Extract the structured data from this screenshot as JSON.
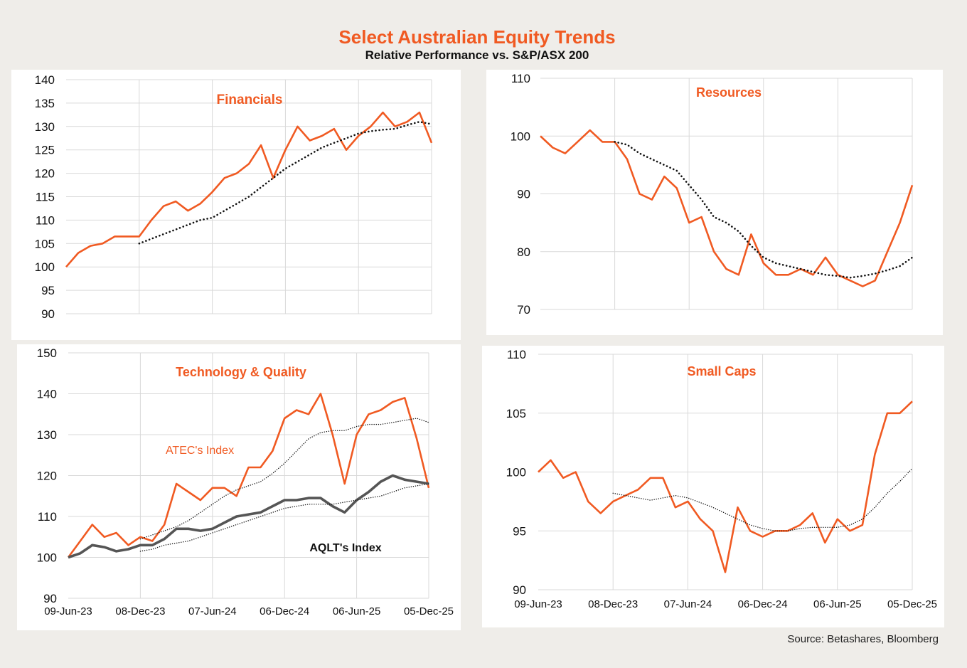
{
  "header": {
    "title": "Select Australian Equity Trends",
    "subtitle": "Relative Performance vs. S&P/ASX 200"
  },
  "source": "Source:  Betashares, Bloomberg",
  "colors": {
    "accent": "#f05a22",
    "aqlt": "#555555",
    "moving_average": "#111111",
    "grid": "#d9d9d9"
  },
  "chart_data": [
    {
      "id": "financials",
      "type": "line",
      "title": "Financials",
      "ylim": [
        90,
        140
      ],
      "yticks": [
        90,
        95,
        100,
        105,
        110,
        115,
        120,
        125,
        130,
        135,
        140
      ],
      "x_tick_labels": [],
      "grid": true,
      "x": [
        "2023-06",
        "2023-07",
        "2023-08",
        "2023-09",
        "2023-10",
        "2023-11",
        "2023-12",
        "2024-01",
        "2024-02",
        "2024-03",
        "2024-04",
        "2024-05",
        "2024-06",
        "2024-07",
        "2024-08",
        "2024-09",
        "2024-10",
        "2024-11",
        "2024-12",
        "2025-01",
        "2025-02",
        "2025-03",
        "2025-04",
        "2025-05",
        "2025-06",
        "2025-07",
        "2025-08",
        "2025-09",
        "2025-10",
        "2025-11",
        "2025-12"
      ],
      "series": [
        {
          "style": "solid",
          "color": "#f05a22",
          "values": [
            100,
            103,
            104.5,
            105,
            106.5,
            106.5,
            106.5,
            110,
            113,
            114,
            112,
            113.5,
            116,
            119,
            120,
            122,
            126,
            119,
            125,
            130,
            127,
            128,
            129.5,
            125,
            128,
            130,
            133,
            130,
            131,
            133,
            126.5
          ]
        },
        {
          "style": "dotted",
          "color": "#111111",
          "values": [
            null,
            null,
            null,
            null,
            null,
            null,
            105,
            106,
            107,
            108,
            109,
            110,
            110.5,
            112,
            113.5,
            115,
            117,
            119,
            121,
            122.5,
            124,
            125.5,
            126.5,
            127.5,
            128.5,
            129,
            129.3,
            129.5,
            130.3,
            131,
            130.5
          ]
        }
      ],
      "annotations": []
    },
    {
      "id": "resources",
      "type": "line",
      "title": "Resources",
      "ylim": [
        70,
        110
      ],
      "yticks": [
        70,
        80,
        90,
        100,
        110
      ],
      "x_tick_labels": [],
      "grid": true,
      "x": [
        "2023-06",
        "2023-07",
        "2023-08",
        "2023-09",
        "2023-10",
        "2023-11",
        "2023-12",
        "2024-01",
        "2024-02",
        "2024-03",
        "2024-04",
        "2024-05",
        "2024-06",
        "2024-07",
        "2024-08",
        "2024-09",
        "2024-10",
        "2024-11",
        "2024-12",
        "2025-01",
        "2025-02",
        "2025-03",
        "2025-04",
        "2025-05",
        "2025-06",
        "2025-07",
        "2025-08",
        "2025-09",
        "2025-10",
        "2025-11",
        "2025-12"
      ],
      "series": [
        {
          "style": "solid",
          "color": "#f05a22",
          "values": [
            100,
            98,
            97,
            99,
            101,
            99,
            99,
            96,
            90,
            89,
            93,
            91,
            85,
            86,
            80,
            77,
            76,
            83,
            78,
            76,
            76,
            77,
            76,
            79,
            76,
            75,
            74,
            75,
            80,
            85,
            91.5
          ]
        },
        {
          "style": "dotted",
          "color": "#111111",
          "values": [
            null,
            null,
            null,
            null,
            null,
            null,
            99,
            98.5,
            97,
            96,
            95,
            94,
            91.5,
            89,
            86,
            85,
            83.5,
            81,
            79,
            78,
            77.5,
            77,
            76.5,
            76,
            75.8,
            75.5,
            75.8,
            76.2,
            76.8,
            77.5,
            79
          ]
        }
      ],
      "annotations": []
    },
    {
      "id": "technology-quality",
      "type": "line",
      "title": "Technology & Quality",
      "ylim": [
        90,
        150
      ],
      "yticks": [
        90,
        100,
        110,
        120,
        130,
        140,
        150
      ],
      "x_tick_labels": [
        "09-Jun-23",
        "08-Dec-23",
        "07-Jun-24",
        "06-Dec-24",
        "06-Jun-25",
        "05-Dec-25"
      ],
      "grid": true,
      "x": [
        "2023-06",
        "2023-07",
        "2023-08",
        "2023-09",
        "2023-10",
        "2023-11",
        "2023-12",
        "2024-01",
        "2024-02",
        "2024-03",
        "2024-04",
        "2024-05",
        "2024-06",
        "2024-07",
        "2024-08",
        "2024-09",
        "2024-10",
        "2024-11",
        "2024-12",
        "2025-01",
        "2025-02",
        "2025-03",
        "2025-04",
        "2025-05",
        "2025-06",
        "2025-07",
        "2025-08",
        "2025-09",
        "2025-10",
        "2025-11",
        "2025-12"
      ],
      "series": [
        {
          "name": "ATEC's Index",
          "style": "solid",
          "color": "#f05a22",
          "values": [
            100,
            104,
            108,
            105,
            106,
            103,
            105,
            104,
            108,
            118,
            116,
            114,
            117,
            117,
            115,
            122,
            122,
            126,
            134,
            136,
            135,
            140,
            130,
            118,
            130,
            135,
            136,
            138,
            139,
            129,
            117
          ]
        },
        {
          "style": "dotted-thin",
          "color": "#111111",
          "values": [
            null,
            null,
            null,
            null,
            null,
            null,
            104.5,
            105.5,
            106.5,
            107.5,
            109,
            111,
            113,
            115,
            116.5,
            117.5,
            118.5,
            120.5,
            123,
            126,
            129,
            130.5,
            131,
            131,
            132,
            132.5,
            132.5,
            133,
            133.5,
            134,
            133
          ]
        },
        {
          "name": "AQLT's Index",
          "style": "solid-thick",
          "color": "#555555",
          "values": [
            100,
            101,
            103,
            102.5,
            101.5,
            102,
            103,
            103,
            104.5,
            107,
            107,
            106.5,
            107,
            108.5,
            110,
            110.5,
            111,
            112.5,
            114,
            114,
            114.5,
            114.5,
            112.5,
            111,
            114,
            116,
            118.5,
            120,
            119,
            118.5,
            118
          ]
        },
        {
          "style": "dotted-thin",
          "color": "#111111",
          "values": [
            null,
            null,
            null,
            null,
            null,
            null,
            101.5,
            102,
            103,
            103.5,
            104,
            105,
            106,
            107,
            108,
            109,
            110,
            111,
            112,
            112.5,
            113,
            113,
            113,
            113.5,
            114,
            114.5,
            115,
            116,
            117,
            117.5,
            118
          ]
        }
      ],
      "annotations": [
        "ATEC's Index",
        "AQLT's Index"
      ]
    },
    {
      "id": "small-caps",
      "type": "line",
      "title": "Small Caps",
      "ylim": [
        90,
        110
      ],
      "yticks": [
        90,
        95,
        100,
        105,
        110
      ],
      "x_tick_labels": [
        "09-Jun-23",
        "08-Dec-23",
        "07-Jun-24",
        "06-Dec-24",
        "06-Jun-25",
        "05-Dec-25"
      ],
      "grid": true,
      "x": [
        "2023-06",
        "2023-07",
        "2023-08",
        "2023-09",
        "2023-10",
        "2023-11",
        "2023-12",
        "2024-01",
        "2024-02",
        "2024-03",
        "2024-04",
        "2024-05",
        "2024-06",
        "2024-07",
        "2024-08",
        "2024-09",
        "2024-10",
        "2024-11",
        "2024-12",
        "2025-01",
        "2025-02",
        "2025-03",
        "2025-04",
        "2025-05",
        "2025-06",
        "2025-07",
        "2025-08",
        "2025-09",
        "2025-10",
        "2025-11",
        "2025-12"
      ],
      "series": [
        {
          "style": "solid",
          "color": "#f05a22",
          "values": [
            100,
            101,
            99.5,
            100,
            97.5,
            96.5,
            97.5,
            98,
            98.5,
            99.5,
            99.5,
            97,
            97.5,
            96,
            95,
            91.5,
            97,
            95,
            94.5,
            95,
            95,
            95.5,
            96.5,
            94,
            96,
            95,
            95.5,
            101.5,
            105,
            105,
            106
          ]
        },
        {
          "style": "dotted-thin",
          "color": "#111111",
          "values": [
            null,
            null,
            null,
            null,
            null,
            null,
            98.2,
            98,
            97.8,
            97.6,
            97.8,
            98,
            97.8,
            97.4,
            97,
            96.5,
            96,
            95.5,
            95.2,
            95,
            95,
            95.2,
            95.3,
            95.3,
            95.3,
            95.5,
            96,
            97,
            98.2,
            99.2,
            100.3
          ]
        }
      ],
      "annotations": []
    }
  ]
}
